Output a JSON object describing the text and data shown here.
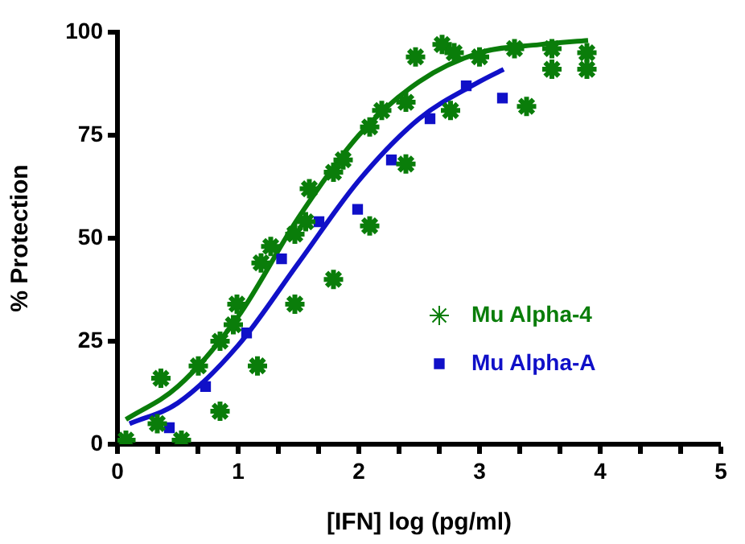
{
  "chart_data": {
    "type": "scatter",
    "xlabel": "[IFN] log (pg/ml)",
    "ylabel": "% Protection",
    "xlim": [
      0,
      5
    ],
    "xticks": [
      0,
      {
        "value": 0.333,
        "label": null
      },
      {
        "value": 0.667,
        "label": null
      },
      1,
      {
        "value": 1.333,
        "label": null
      },
      {
        "value": 1.667,
        "label": null
      },
      2,
      {
        "value": 2.333,
        "label": null
      },
      {
        "value": 2.667,
        "label": null
      },
      3,
      {
        "value": 3.333,
        "label": null
      },
      {
        "value": 3.667,
        "label": null
      },
      4,
      {
        "value": 4.333,
        "label": null
      },
      {
        "value": 4.667,
        "label": null
      },
      5
    ],
    "ylim": [
      0,
      100
    ],
    "yticks": [
      0,
      25,
      50,
      75,
      100
    ],
    "legend": "bottom right",
    "series": [
      {
        "name": "Mu Alpha-4",
        "type": "scatter",
        "marker": "cross",
        "color": "#0a7d0a",
        "x": [
          0.07,
          0.36,
          0.33,
          0.53,
          0.67,
          0.85,
          0.85,
          0.99,
          0.96,
          1.16,
          1.19,
          1.27,
          1.47,
          1.47,
          1.56,
          1.79,
          2.09,
          1.59,
          1.79,
          1.87,
          2.09,
          2.19,
          2.39,
          2.47,
          2.39,
          2.69,
          2.79,
          2.76,
          3.0,
          3.29,
          3.39,
          3.6,
          3.6,
          3.89,
          3.89
        ],
        "values": [
          1,
          16,
          5,
          1,
          19,
          8,
          25,
          34,
          29,
          19,
          44,
          48,
          34,
          51,
          54,
          40,
          53,
          62,
          66,
          69,
          77,
          81,
          83,
          94,
          68,
          97,
          95,
          81,
          94,
          96,
          82,
          96,
          91,
          95,
          91
        ]
      },
      {
        "name": "Mu Alpha-A",
        "type": "scatter",
        "marker": "square",
        "color": "#1010c8",
        "x": [
          0.43,
          0.73,
          1.07,
          1.36,
          1.67,
          1.99,
          2.27,
          2.59,
          2.89,
          3.19
        ],
        "values": [
          4,
          14,
          27,
          45,
          54,
          57,
          69,
          79,
          87,
          84
        ]
      },
      {
        "type": "line",
        "marker": "none",
        "color": "#0a7d0a",
        "x": [
          0.07,
          0.5,
          1,
          1.5,
          2,
          2.5,
          3,
          3.5,
          3.9
        ],
        "values": [
          6,
          14,
          31,
          55,
          75,
          88,
          95,
          97,
          98
        ]
      },
      {
        "type": "line",
        "marker": "none",
        "color": "#1010c8",
        "x": [
          0.1,
          0.5,
          1,
          1.5,
          2,
          2.5,
          3,
          3.2
        ],
        "values": [
          5,
          10,
          24,
          44,
          64,
          79,
          88,
          91
        ]
      }
    ]
  }
}
